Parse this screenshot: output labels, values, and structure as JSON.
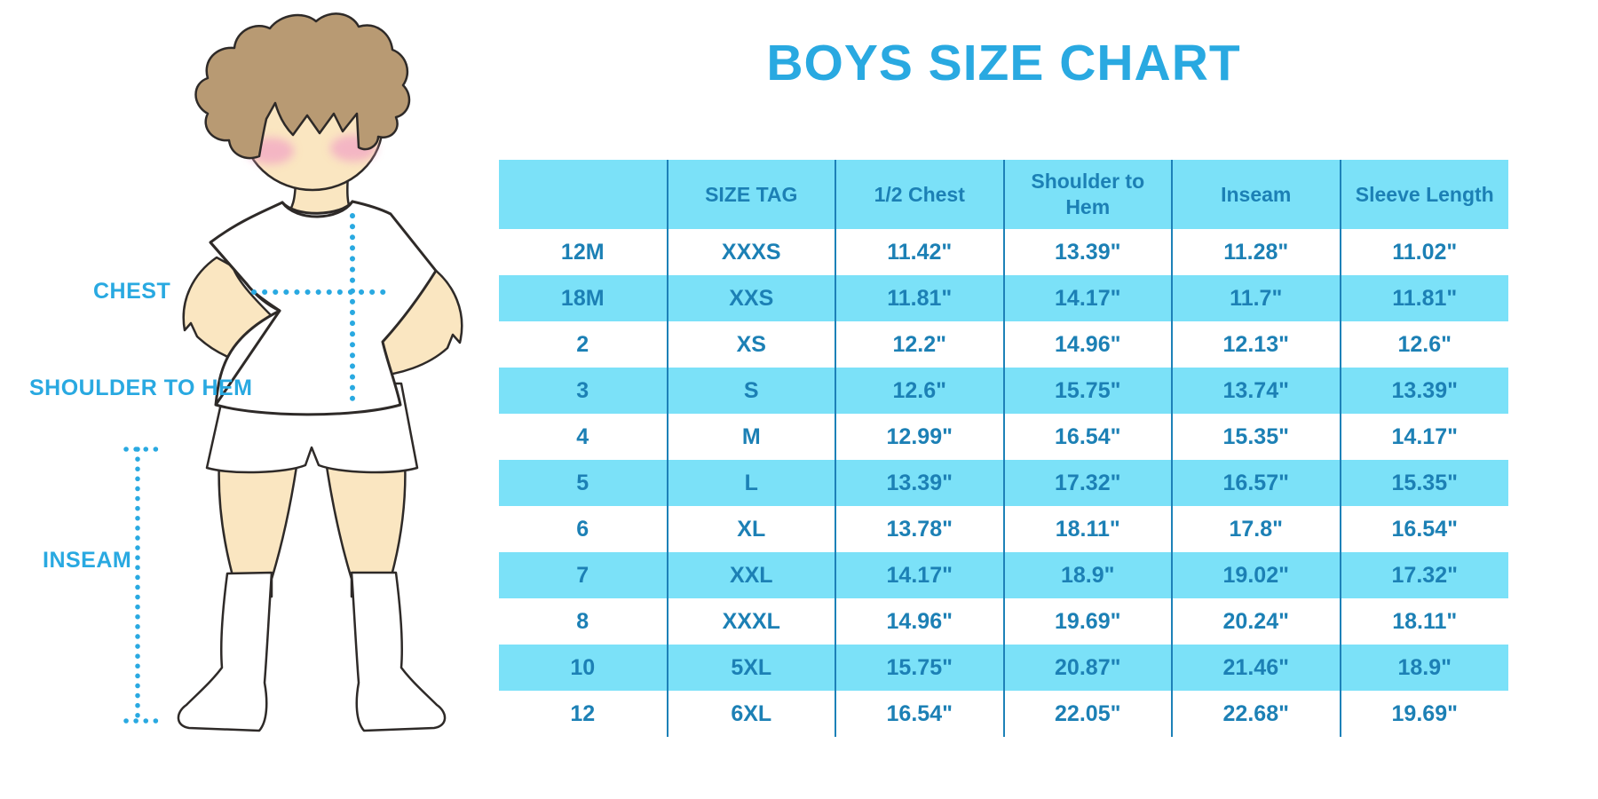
{
  "title": "BOYS SIZE CHART",
  "figure": {
    "labels": {
      "chest": "CHEST",
      "shoulder_to_hem": "SHOULDER TO HEM",
      "inseam": "INSEAM"
    }
  },
  "table": {
    "columns": [
      "",
      "SIZE TAG",
      "1/2 Chest",
      "Shoulder to Hem",
      "Inseam",
      "Sleeve Length"
    ],
    "rows": [
      [
        "12M",
        "XXXS",
        "11.42\"",
        "13.39\"",
        "11.28\"",
        "11.02\""
      ],
      [
        "18M",
        "XXS",
        "11.81\"",
        "14.17\"",
        "11.7\"",
        "11.81\""
      ],
      [
        "2",
        "XS",
        "12.2\"",
        "14.96\"",
        "12.13\"",
        "12.6\""
      ],
      [
        "3",
        "S",
        "12.6\"",
        "15.75\"",
        "13.74\"",
        "13.39\""
      ],
      [
        "4",
        "M",
        "12.99\"",
        "16.54\"",
        "15.35\"",
        "14.17\""
      ],
      [
        "5",
        "L",
        "13.39\"",
        "17.32\"",
        "16.57\"",
        "15.35\""
      ],
      [
        "6",
        "XL",
        "13.78\"",
        "18.11\"",
        "17.8\"",
        "16.54\""
      ],
      [
        "7",
        "XXL",
        "14.17\"",
        "18.9\"",
        "19.02\"",
        "17.32\""
      ],
      [
        "8",
        "XXXL",
        "14.96\"",
        "19.69\"",
        "20.24\"",
        "18.11\""
      ],
      [
        "10",
        "5XL",
        "15.75\"",
        "20.87\"",
        "21.46\"",
        "18.9\""
      ],
      [
        "12",
        "6XL",
        "16.54\"",
        "22.05\"",
        "22.68\"",
        "19.69\""
      ]
    ]
  },
  "colors": {
    "accent_blue": "#29A9E1",
    "table_text": "#1C80B5",
    "row_band": "#7BE1F8",
    "divider": "#1D81B8",
    "skin": "#FAE6C1",
    "hair": "#B89A73",
    "blush": "#F2A6C4",
    "outline": "#2E2A28"
  }
}
